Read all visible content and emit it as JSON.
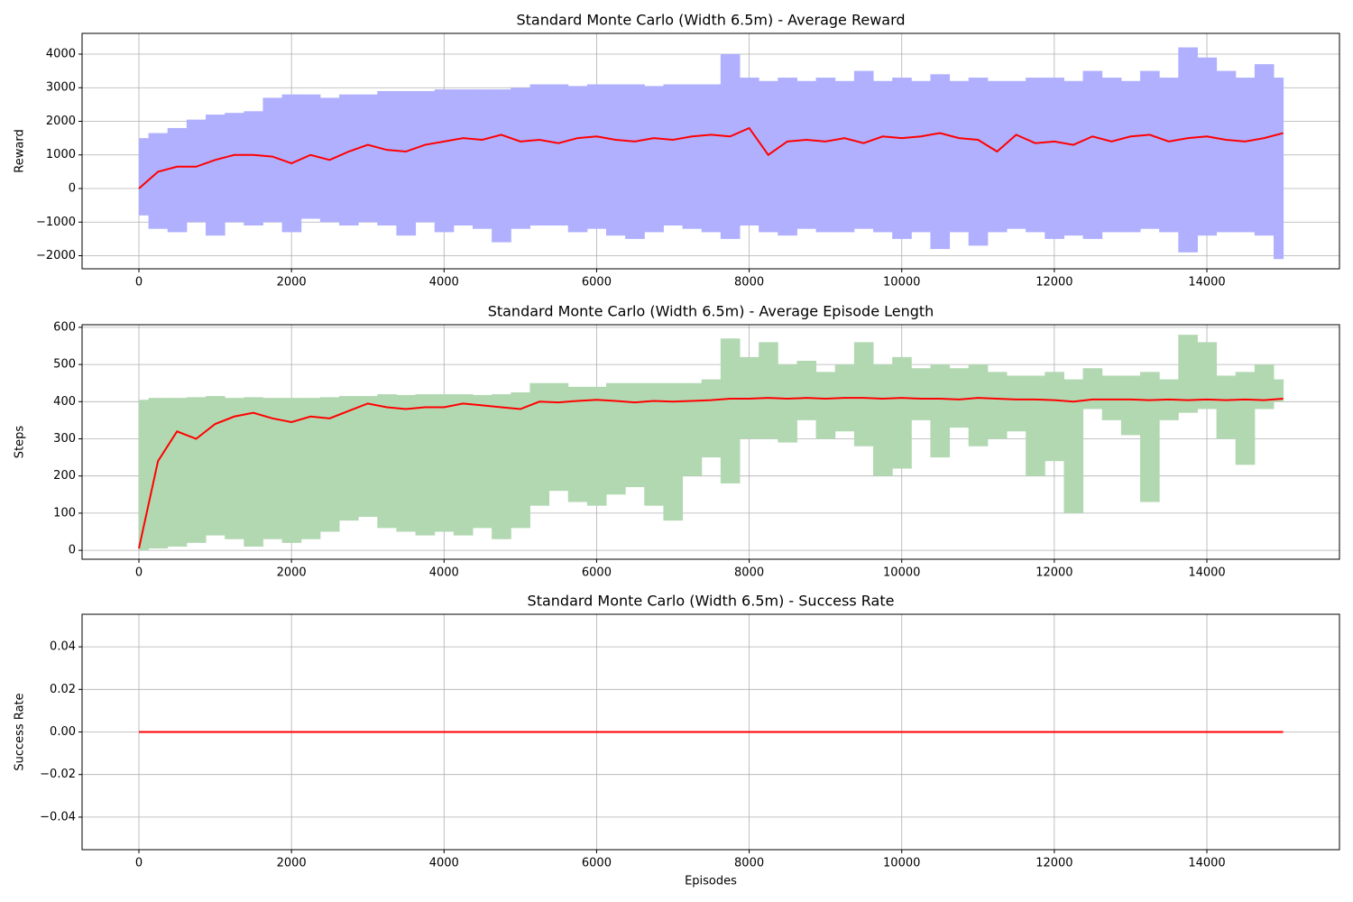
{
  "chart_data": [
    {
      "type": "line",
      "title": "Standard Monte Carlo (Width 6.5m) - Average Reward",
      "ylabel": "Reward",
      "x": [
        0,
        250,
        500,
        750,
        1000,
        1250,
        1500,
        1750,
        2000,
        2250,
        2500,
        2750,
        3000,
        3250,
        3500,
        3750,
        4000,
        4250,
        4500,
        4750,
        5000,
        5250,
        5500,
        5750,
        6000,
        6250,
        6500,
        6750,
        7000,
        7250,
        7500,
        7750,
        8000,
        8250,
        8500,
        8750,
        9000,
        9250,
        9500,
        9750,
        10000,
        10250,
        10500,
        10750,
        11000,
        11250,
        11500,
        11750,
        12000,
        12250,
        12500,
        12750,
        13000,
        13250,
        13500,
        13750,
        14000,
        14250,
        14500,
        14750,
        15000
      ],
      "series": [
        {
          "color": "#b0b0ff",
          "values": [
            1500,
            1650,
            1800,
            2050,
            2200,
            2250,
            2300,
            2700,
            2800,
            2800,
            2700,
            2800,
            2800,
            2900,
            2900,
            2900,
            2950,
            2950,
            2950,
            2950,
            3000,
            3100,
            3100,
            3050,
            3100,
            3100,
            3100,
            3050,
            3100,
            3100,
            3100,
            4000,
            3300,
            3200,
            3300,
            3200,
            3300,
            3200,
            3500,
            3200,
            3300,
            3200,
            3400,
            3200,
            3300,
            3200,
            3200,
            3300,
            3300,
            3200,
            3500,
            3300,
            3200,
            3500,
            3300,
            4200,
            3900,
            3500,
            3300,
            3700,
            3300
          ],
          "lower": [
            -800,
            -1200,
            -1300,
            -1000,
            -1400,
            -1000,
            -1100,
            -1000,
            -1300,
            -900,
            -1000,
            -1100,
            -1000,
            -1100,
            -1400,
            -1000,
            -1300,
            -1100,
            -1200,
            -1600,
            -1200,
            -1100,
            -1100,
            -1300,
            -1200,
            -1400,
            -1500,
            -1300,
            -1100,
            -1200,
            -1300,
            -1500,
            -1100,
            -1300,
            -1400,
            -1200,
            -1300,
            -1300,
            -1200,
            -1300,
            -1500,
            -1300,
            -1800,
            -1300,
            -1700,
            -1300,
            -1200,
            -1300,
            -1500,
            -1400,
            -1500,
            -1300,
            -1300,
            -1200,
            -1300,
            -1900,
            -1400,
            -1300,
            -1300,
            -1400,
            -2100
          ]
        },
        {
          "color": "#ff0000",
          "values": [
            0,
            500,
            650,
            650,
            850,
            1000,
            1000,
            950,
            750,
            1000,
            850,
            1100,
            1300,
            1150,
            1100,
            1300,
            1400,
            1500,
            1450,
            1600,
            1400,
            1450,
            1350,
            1500,
            1550,
            1450,
            1400,
            1500,
            1450,
            1550,
            1600,
            1550,
            1800,
            1000,
            1400,
            1450,
            1400,
            1500,
            1350,
            1550,
            1500,
            1550,
            1650,
            1500,
            1450,
            1100,
            1600,
            1350,
            1400,
            1300,
            1550,
            1400,
            1550,
            1600,
            1400,
            1500,
            1550,
            1450,
            1400,
            1500,
            1650
          ]
        }
      ],
      "xlim": [
        -745,
        15738
      ],
      "ylim": [
        -2389,
        4617
      ],
      "xticks": [
        0,
        2000,
        4000,
        6000,
        8000,
        10000,
        12000,
        14000
      ],
      "yticks": [
        {
          "value": -2000,
          "label": "−2000"
        },
        {
          "value": -1000,
          "label": "−1000"
        },
        0,
        1000,
        2000,
        3000,
        4000
      ],
      "grid": true
    },
    {
      "type": "line",
      "title": "Standard Monte Carlo (Width 6.5m) - Average Episode Length",
      "ylabel": "Steps",
      "x": [
        0,
        250,
        500,
        750,
        1000,
        1250,
        1500,
        1750,
        2000,
        2250,
        2500,
        2750,
        3000,
        3250,
        3500,
        3750,
        4000,
        4250,
        4500,
        4750,
        5000,
        5250,
        5500,
        5750,
        6000,
        6250,
        6500,
        6750,
        7000,
        7250,
        7500,
        7750,
        8000,
        8250,
        8500,
        8750,
        9000,
        9250,
        9500,
        9750,
        10000,
        10250,
        10500,
        10750,
        11000,
        11250,
        11500,
        11750,
        12000,
        12250,
        12500,
        12750,
        13000,
        13250,
        13500,
        13750,
        14000,
        14250,
        14500,
        14750,
        15000
      ],
      "series": [
        {
          "color": "#b2d8b2",
          "values": [
            405,
            410,
            410,
            412,
            415,
            410,
            412,
            410,
            410,
            410,
            412,
            415,
            415,
            420,
            418,
            420,
            420,
            420,
            418,
            420,
            425,
            450,
            450,
            440,
            440,
            450,
            450,
            450,
            450,
            450,
            460,
            570,
            520,
            560,
            500,
            510,
            480,
            500,
            560,
            500,
            520,
            490,
            500,
            490,
            500,
            480,
            470,
            470,
            480,
            460,
            490,
            470,
            470,
            480,
            460,
            580,
            560,
            470,
            480,
            500,
            460
          ],
          "lower": [
            0,
            5,
            10,
            20,
            40,
            30,
            10,
            30,
            20,
            30,
            50,
            80,
            90,
            60,
            50,
            40,
            50,
            40,
            60,
            30,
            60,
            120,
            160,
            130,
            120,
            150,
            170,
            120,
            80,
            200,
            250,
            180,
            300,
            300,
            290,
            350,
            300,
            320,
            280,
            200,
            220,
            350,
            250,
            330,
            280,
            300,
            320,
            200,
            240,
            100,
            380,
            350,
            310,
            130,
            350,
            370,
            380,
            300,
            230,
            380,
            400
          ]
        },
        {
          "color": "#ff0000",
          "values": [
            5,
            240,
            320,
            300,
            340,
            360,
            370,
            355,
            345,
            360,
            355,
            375,
            395,
            385,
            380,
            385,
            385,
            395,
            390,
            385,
            380,
            400,
            398,
            402,
            405,
            402,
            398,
            402,
            400,
            402,
            404,
            408,
            408,
            410,
            408,
            410,
            408,
            410,
            410,
            408,
            410,
            408,
            408,
            406,
            410,
            408,
            406,
            406,
            404,
            400,
            406,
            406,
            406,
            404,
            406,
            404,
            406,
            404,
            406,
            404,
            408
          ]
        }
      ],
      "xlim": [
        -745,
        15738
      ],
      "ylim": [
        -24,
        607
      ],
      "xticks": [
        0,
        2000,
        4000,
        6000,
        8000,
        10000,
        12000,
        14000
      ],
      "yticks": [
        0,
        100,
        200,
        300,
        400,
        500,
        600
      ],
      "grid": true
    },
    {
      "type": "line",
      "title": "Standard Monte Carlo (Width 6.5m) - Success Rate",
      "ylabel": "Success Rate",
      "xlabel": "Episodes",
      "x": [
        0,
        250,
        500,
        750,
        1000,
        1250,
        1500,
        1750,
        2000,
        2250,
        2500,
        2750,
        3000,
        3250,
        3500,
        3750,
        4000,
        4250,
        4500,
        4750,
        5000,
        5250,
        5500,
        5750,
        6000,
        6250,
        6500,
        6750,
        7000,
        7250,
        7500,
        7750,
        8000,
        8250,
        8500,
        8750,
        9000,
        9250,
        9500,
        9750,
        10000,
        10250,
        10500,
        10750,
        11000,
        11250,
        11500,
        11750,
        12000,
        12250,
        12500,
        12750,
        13000,
        13250,
        13500,
        13750,
        14000,
        14250,
        14500,
        14750,
        15000
      ],
      "series": [
        {
          "color": "#ff0000",
          "values": [
            0,
            0,
            0,
            0,
            0,
            0,
            0,
            0,
            0,
            0,
            0,
            0,
            0,
            0,
            0,
            0,
            0,
            0,
            0,
            0,
            0,
            0,
            0,
            0,
            0,
            0,
            0,
            0,
            0,
            0,
            0,
            0,
            0,
            0,
            0,
            0,
            0,
            0,
            0,
            0,
            0,
            0,
            0,
            0,
            0,
            0,
            0,
            0,
            0,
            0,
            0,
            0,
            0,
            0,
            0,
            0,
            0,
            0,
            0,
            0,
            0
          ]
        }
      ],
      "xlim": [
        -745,
        15738
      ],
      "ylim": [
        -0.0553,
        0.0553
      ],
      "xticks": [
        0,
        2000,
        4000,
        6000,
        8000,
        10000,
        12000,
        14000
      ],
      "yticks": [
        {
          "value": -0.04,
          "label": "−0.04"
        },
        {
          "value": -0.02,
          "label": "−0.02"
        },
        {
          "value": 0,
          "label": "0.00"
        },
        0.02,
        0.04
      ],
      "grid": true
    }
  ]
}
